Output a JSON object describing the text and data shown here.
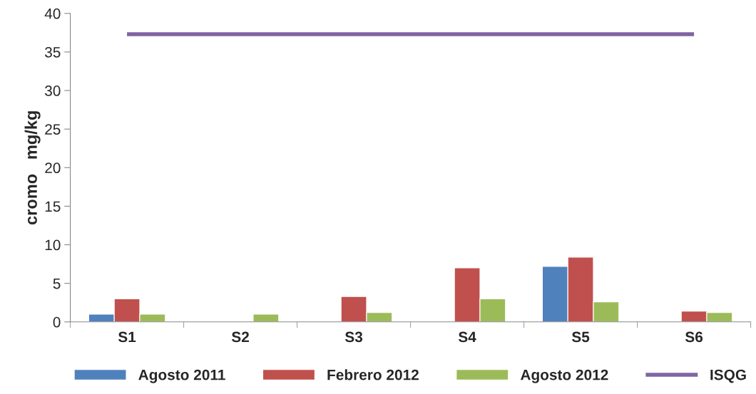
{
  "chart_data": {
    "type": "bar",
    "ylabel": "cromo   mg/kg",
    "categories": [
      "S1",
      "S2",
      "S3",
      "S4",
      "S5",
      "S6"
    ],
    "series": [
      {
        "name": "Agosto 2011",
        "color": "#4f81bd",
        "values": [
          1.0,
          null,
          null,
          null,
          7.2,
          null
        ]
      },
      {
        "name": "Febrero 2012",
        "color": "#c0504d",
        "values": [
          3.0,
          null,
          3.3,
          7.0,
          8.4,
          1.4
        ]
      },
      {
        "name": "Agosto 2012",
        "color": "#9bbb59",
        "values": [
          1.0,
          1.0,
          1.2,
          3.0,
          2.6,
          1.2
        ]
      },
      {
        "name": "ISQG",
        "type": "line",
        "color": "#8064a2",
        "values": [
          37.3,
          37.3,
          37.3,
          37.3,
          37.3,
          37.3
        ]
      }
    ],
    "ylim": [
      0,
      40
    ],
    "yticks": [
      0,
      5,
      10,
      15,
      20,
      25,
      30,
      35,
      40
    ],
    "grid": false,
    "legend": "bottom"
  }
}
